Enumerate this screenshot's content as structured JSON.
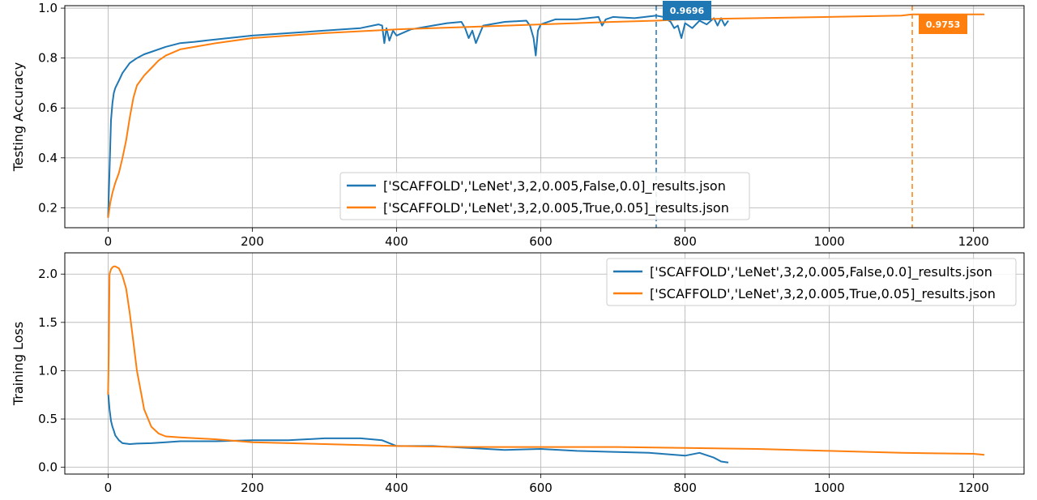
{
  "chart_data": [
    {
      "type": "line",
      "ylabel": "Testing Accuracy",
      "xlim": [
        -60,
        1270
      ],
      "ylim": [
        0.12,
        1.01
      ],
      "xticks": [
        0,
        200,
        400,
        600,
        800,
        1000,
        1200
      ],
      "yticks": [
        0.2,
        0.4,
        0.6,
        0.8,
        1.0
      ],
      "ytick_labels": [
        "0.2",
        "0.4",
        "0.6",
        "0.8",
        "1.0"
      ],
      "grid": true,
      "legend_position": "lower-center",
      "series": [
        {
          "name": "['SCAFFOLD','LeNet',3,2,0.005,False,0.0]_results.json",
          "color": "#1f77b4",
          "x": [
            0,
            2,
            4,
            6,
            8,
            10,
            15,
            20,
            30,
            40,
            50,
            60,
            80,
            100,
            120,
            150,
            200,
            250,
            300,
            350,
            375,
            380,
            383,
            386,
            390,
            395,
            400,
            420,
            450,
            470,
            490,
            495,
            500,
            505,
            510,
            520,
            550,
            580,
            585,
            590,
            593,
            596,
            600,
            620,
            650,
            680,
            685,
            690,
            700,
            730,
            760,
            770,
            780,
            785,
            790,
            795,
            800,
            810,
            820,
            830,
            840,
            845,
            850,
            855,
            860
          ],
          "y": [
            0.16,
            0.35,
            0.55,
            0.62,
            0.66,
            0.68,
            0.71,
            0.74,
            0.78,
            0.8,
            0.815,
            0.825,
            0.845,
            0.86,
            0.865,
            0.875,
            0.89,
            0.9,
            0.91,
            0.92,
            0.935,
            0.93,
            0.86,
            0.92,
            0.87,
            0.91,
            0.89,
            0.915,
            0.93,
            0.94,
            0.945,
            0.92,
            0.88,
            0.91,
            0.86,
            0.93,
            0.945,
            0.95,
            0.93,
            0.88,
            0.81,
            0.91,
            0.935,
            0.955,
            0.955,
            0.965,
            0.93,
            0.955,
            0.965,
            0.96,
            0.97,
            0.965,
            0.945,
            0.92,
            0.93,
            0.88,
            0.94,
            0.92,
            0.95,
            0.935,
            0.96,
            0.93,
            0.96,
            0.93,
            0.95
          ]
        },
        {
          "name": "['SCAFFOLD','LeNet',3,2,0.005,True,0.05]_results.json",
          "color": "#ff7f0e",
          "x": [
            0,
            3,
            6,
            10,
            15,
            20,
            25,
            30,
            35,
            40,
            50,
            60,
            70,
            80,
            100,
            150,
            200,
            300,
            400,
            500,
            600,
            700,
            760,
            800,
            900,
            1000,
            1100,
            1115,
            1200,
            1215
          ],
          "y": [
            0.16,
            0.22,
            0.26,
            0.3,
            0.34,
            0.4,
            0.47,
            0.56,
            0.64,
            0.69,
            0.73,
            0.76,
            0.79,
            0.81,
            0.835,
            0.86,
            0.88,
            0.9,
            0.915,
            0.925,
            0.935,
            0.945,
            0.95,
            0.955,
            0.96,
            0.965,
            0.97,
            0.9753,
            0.975,
            0.975
          ]
        }
      ],
      "annotations": [
        {
          "text": "0.9696",
          "x": 760,
          "color": "#1f77b4"
        },
        {
          "text": "0.9753",
          "x": 1115,
          "color": "#ff7f0e"
        }
      ]
    },
    {
      "type": "line",
      "ylabel": "Training Loss",
      "xlim": [
        -60,
        1270
      ],
      "ylim": [
        -0.07,
        2.22
      ],
      "xticks": [
        0,
        200,
        400,
        600,
        800,
        1000,
        1200
      ],
      "yticks": [
        0.0,
        0.5,
        1.0,
        1.5,
        2.0
      ],
      "ytick_labels": [
        "0.0",
        "0.5",
        "1.0",
        "1.5",
        "2.0"
      ],
      "grid": true,
      "legend_position": "upper-right",
      "series": [
        {
          "name": "['SCAFFOLD','LeNet',3,2,0.005,False,0.0]_results.json",
          "color": "#1f77b4",
          "x": [
            0,
            2,
            4,
            6,
            8,
            10,
            15,
            20,
            30,
            40,
            60,
            80,
            100,
            150,
            200,
            250,
            300,
            350,
            380,
            400,
            450,
            500,
            550,
            600,
            650,
            700,
            750,
            800,
            820,
            840,
            850,
            860
          ],
          "y": [
            0.78,
            0.6,
            0.48,
            0.42,
            0.38,
            0.33,
            0.28,
            0.25,
            0.24,
            0.245,
            0.25,
            0.26,
            0.27,
            0.27,
            0.28,
            0.28,
            0.3,
            0.3,
            0.28,
            0.22,
            0.22,
            0.2,
            0.18,
            0.19,
            0.17,
            0.16,
            0.15,
            0.12,
            0.15,
            0.1,
            0.06,
            0.05
          ]
        },
        {
          "name": "['SCAFFOLD','LeNet',3,2,0.005,True,0.05]_results.json",
          "color": "#ff7f0e",
          "x": [
            0,
            1,
            2,
            4,
            6,
            8,
            10,
            15,
            20,
            25,
            30,
            35,
            40,
            45,
            50,
            60,
            70,
            80,
            100,
            150,
            200,
            300,
            400,
            500,
            600,
            700,
            800,
            900,
            1000,
            1100,
            1200,
            1215
          ],
          "y": [
            0.75,
            1.2,
            2.0,
            2.05,
            2.07,
            2.08,
            2.08,
            2.06,
            1.98,
            1.85,
            1.6,
            1.3,
            1.0,
            0.8,
            0.6,
            0.42,
            0.35,
            0.32,
            0.31,
            0.29,
            0.26,
            0.24,
            0.22,
            0.21,
            0.21,
            0.21,
            0.2,
            0.19,
            0.17,
            0.15,
            0.14,
            0.13
          ]
        }
      ]
    }
  ]
}
